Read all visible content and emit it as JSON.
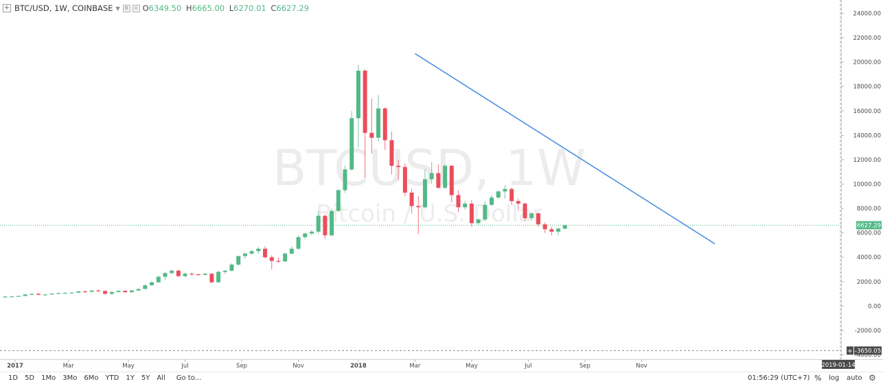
{
  "header": {
    "symbol": "BTC/USD, 1W, COINBASE",
    "collapse_icon": "plus-square-icon",
    "dropdown_icon": "chevron-down-icon",
    "settings_icon": "gear-icon",
    "close_icon": "close-icon",
    "open_label": "O",
    "open_value": "6349.50",
    "high_label": "H",
    "high_value": "6665.00",
    "low_label": "L",
    "low_value": "6270.01",
    "close_label": "C",
    "close_value": "6627.29"
  },
  "watermark": {
    "symbol": "BTCUSD, 1W",
    "description": "Bitcoin / U.S. Dollar"
  },
  "colors": {
    "up": "#53b987",
    "down": "#eb4d5c",
    "trendline": "#4a90e2",
    "watermark": "#ececec",
    "axis_text": "#4a4a4a",
    "price_line": "#53b987"
  },
  "chart_data": {
    "type": "candlestick",
    "title": "BTC/USD, 1W, COINBASE",
    "ylim": [
      -4700,
      24700
    ],
    "y_ticks": [
      "24000.00",
      "22000.00",
      "20000.00",
      "18000.00",
      "16000.00",
      "14000.00",
      "12000.00",
      "10000.00",
      "8000.00",
      "6000.00",
      "4000.00",
      "2000.00",
      "0.00",
      "-2000.00",
      "-4000.00"
    ],
    "x_ticks": [
      "2017",
      "Mar",
      "May",
      "Jul",
      "Sep",
      "Nov",
      "2018",
      "Mar",
      "May",
      "Jul",
      "Sep",
      "Nov"
    ],
    "x_tick_weeks": [
      1.5,
      9.5,
      18.5,
      27,
      35.5,
      44,
      53,
      61.5,
      70,
      78.5,
      87,
      95.5
    ],
    "bold_ticks": [
      "2017",
      "2018"
    ],
    "grid": false,
    "candles": [
      {
        "o": 750,
        "h": 820,
        "l": 700,
        "c": 780
      },
      {
        "o": 780,
        "h": 830,
        "l": 740,
        "c": 790
      },
      {
        "o": 790,
        "h": 860,
        "l": 760,
        "c": 830
      },
      {
        "o": 830,
        "h": 1000,
        "l": 800,
        "c": 950
      },
      {
        "o": 950,
        "h": 1050,
        "l": 880,
        "c": 1000
      },
      {
        "o": 1000,
        "h": 1080,
        "l": 900,
        "c": 920
      },
      {
        "o": 920,
        "h": 980,
        "l": 850,
        "c": 950
      },
      {
        "o": 950,
        "h": 1050,
        "l": 930,
        "c": 1020
      },
      {
        "o": 1020,
        "h": 1080,
        "l": 990,
        "c": 1060
      },
      {
        "o": 1060,
        "h": 1120,
        "l": 1010,
        "c": 1080
      },
      {
        "o": 1080,
        "h": 1130,
        "l": 1030,
        "c": 1100
      },
      {
        "o": 1100,
        "h": 1230,
        "l": 1090,
        "c": 1200
      },
      {
        "o": 1200,
        "h": 1280,
        "l": 1120,
        "c": 1170
      },
      {
        "o": 1170,
        "h": 1300,
        "l": 1150,
        "c": 1270
      },
      {
        "o": 1270,
        "h": 1350,
        "l": 1200,
        "c": 1240
      },
      {
        "o": 1240,
        "h": 1280,
        "l": 950,
        "c": 1000
      },
      {
        "o": 1000,
        "h": 1200,
        "l": 940,
        "c": 1150
      },
      {
        "o": 1150,
        "h": 1280,
        "l": 1100,
        "c": 1250
      },
      {
        "o": 1250,
        "h": 1290,
        "l": 1100,
        "c": 1130
      },
      {
        "o": 1130,
        "h": 1300,
        "l": 1120,
        "c": 1280
      },
      {
        "o": 1280,
        "h": 1440,
        "l": 1240,
        "c": 1400
      },
      {
        "o": 1400,
        "h": 1780,
        "l": 1390,
        "c": 1700
      },
      {
        "o": 1700,
        "h": 2000,
        "l": 1680,
        "c": 1950
      },
      {
        "o": 1950,
        "h": 2500,
        "l": 1900,
        "c": 2400
      },
      {
        "o": 2400,
        "h": 2800,
        "l": 2150,
        "c": 2700
      },
      {
        "o": 2700,
        "h": 3000,
        "l": 2600,
        "c": 2900
      },
      {
        "o": 2900,
        "h": 3000,
        "l": 2400,
        "c": 2450
      },
      {
        "o": 2450,
        "h": 2750,
        "l": 2350,
        "c": 2650
      },
      {
        "o": 2650,
        "h": 2750,
        "l": 2500,
        "c": 2600
      },
      {
        "o": 2600,
        "h": 2650,
        "l": 2500,
        "c": 2550
      },
      {
        "o": 2550,
        "h": 2700,
        "l": 2550,
        "c": 2650
      },
      {
        "o": 2650,
        "h": 2700,
        "l": 1850,
        "c": 1950
      },
      {
        "o": 1950,
        "h": 2900,
        "l": 1900,
        "c": 2800
      },
      {
        "o": 2800,
        "h": 2950,
        "l": 2650,
        "c": 2900
      },
      {
        "o": 2900,
        "h": 3500,
        "l": 2850,
        "c": 3400
      },
      {
        "o": 3400,
        "h": 4100,
        "l": 3300,
        "c": 4100
      },
      {
        "o": 4100,
        "h": 4400,
        "l": 3900,
        "c": 4300
      },
      {
        "o": 4300,
        "h": 4600,
        "l": 4200,
        "c": 4500
      },
      {
        "o": 4500,
        "h": 4850,
        "l": 4300,
        "c": 4700
      },
      {
        "o": 4700,
        "h": 4900,
        "l": 3900,
        "c": 4000
      },
      {
        "o": 4000,
        "h": 4150,
        "l": 3000,
        "c": 3700
      },
      {
        "o": 3700,
        "h": 4000,
        "l": 3550,
        "c": 3650
      },
      {
        "o": 3650,
        "h": 4400,
        "l": 3650,
        "c": 4300
      },
      {
        "o": 4300,
        "h": 4900,
        "l": 4200,
        "c": 4700
      },
      {
        "o": 4700,
        "h": 5800,
        "l": 4600,
        "c": 5650
      },
      {
        "o": 5650,
        "h": 6000,
        "l": 5500,
        "c": 5950
      },
      {
        "o": 5950,
        "h": 6250,
        "l": 5800,
        "c": 6100
      },
      {
        "o": 6100,
        "h": 7800,
        "l": 5900,
        "c": 7400
      },
      {
        "o": 7400,
        "h": 7500,
        "l": 5500,
        "c": 5800
      },
      {
        "o": 5800,
        "h": 8000,
        "l": 5700,
        "c": 7800
      },
      {
        "o": 7800,
        "h": 9600,
        "l": 7700,
        "c": 9500
      },
      {
        "o": 9500,
        "h": 11500,
        "l": 9300,
        "c": 11200
      },
      {
        "o": 11200,
        "h": 16000,
        "l": 11100,
        "c": 15400
      },
      {
        "o": 15400,
        "h": 19800,
        "l": 13000,
        "c": 19300
      },
      {
        "o": 19300,
        "h": 19400,
        "l": 10500,
        "c": 14200
      },
      {
        "o": 14200,
        "h": 17000,
        "l": 12500,
        "c": 13800
      },
      {
        "o": 13800,
        "h": 17300,
        "l": 13500,
        "c": 16200
      },
      {
        "o": 16200,
        "h": 16300,
        "l": 12800,
        "c": 13600
      },
      {
        "o": 13600,
        "h": 14300,
        "l": 10800,
        "c": 11500
      },
      {
        "o": 11500,
        "h": 12000,
        "l": 10300,
        "c": 11400
      },
      {
        "o": 11400,
        "h": 11700,
        "l": 9000,
        "c": 9300
      },
      {
        "o": 9300,
        "h": 9600,
        "l": 7600,
        "c": 8200
      },
      {
        "o": 8200,
        "h": 9000,
        "l": 5900,
        "c": 8100
      },
      {
        "o": 8100,
        "h": 11200,
        "l": 8000,
        "c": 10400
      },
      {
        "o": 10400,
        "h": 11800,
        "l": 10000,
        "c": 10900
      },
      {
        "o": 10900,
        "h": 11600,
        "l": 9600,
        "c": 9700
      },
      {
        "o": 9700,
        "h": 11600,
        "l": 9600,
        "c": 11500
      },
      {
        "o": 11500,
        "h": 11600,
        "l": 8500,
        "c": 9100
      },
      {
        "o": 9100,
        "h": 9500,
        "l": 7700,
        "c": 8100
      },
      {
        "o": 8100,
        "h": 8600,
        "l": 7900,
        "c": 8400
      },
      {
        "o": 8400,
        "h": 8700,
        "l": 6500,
        "c": 6800
      },
      {
        "o": 6800,
        "h": 7200,
        "l": 6600,
        "c": 7100
      },
      {
        "o": 7100,
        "h": 8600,
        "l": 7000,
        "c": 8300
      },
      {
        "o": 8300,
        "h": 9100,
        "l": 8200,
        "c": 8900
      },
      {
        "o": 8900,
        "h": 9500,
        "l": 8800,
        "c": 9400
      },
      {
        "o": 9400,
        "h": 9900,
        "l": 8800,
        "c": 9600
      },
      {
        "o": 9600,
        "h": 9700,
        "l": 8300,
        "c": 8600
      },
      {
        "o": 8600,
        "h": 8800,
        "l": 7800,
        "c": 8400
      },
      {
        "o": 8400,
        "h": 8500,
        "l": 7000,
        "c": 7200
      },
      {
        "o": 7200,
        "h": 7700,
        "l": 7000,
        "c": 7600
      },
      {
        "o": 7600,
        "h": 7700,
        "l": 6500,
        "c": 6700
      },
      {
        "o": 6700,
        "h": 6850,
        "l": 6000,
        "c": 6300
      },
      {
        "o": 6300,
        "h": 6500,
        "l": 5800,
        "c": 6100
      },
      {
        "o": 6100,
        "h": 6450,
        "l": 5800,
        "c": 6350
      },
      {
        "o": 6349.5,
        "h": 6665,
        "l": 6270.01,
        "c": 6627.29
      }
    ],
    "trendline": {
      "x1_week": 61.5,
      "y1": 20700,
      "x2_week": 106.5,
      "y2": 5100
    },
    "current_price": {
      "value": 6627.29,
      "label": "6627.29"
    },
    "crosshair": {
      "value": -3650.05,
      "label": "-3650.05",
      "date_label": "2019-01-14"
    }
  },
  "bottom_bar": {
    "intervals": [
      "1D",
      "5D",
      "1Mo",
      "3Mo",
      "6Mo",
      "YTD",
      "1Y",
      "5Y",
      "All"
    ],
    "goto": "Go to...",
    "clock": "01:56:29 (UTC+7)",
    "percent": "%",
    "log": "log",
    "auto": "auto",
    "settings_icon": "gear-icon"
  }
}
